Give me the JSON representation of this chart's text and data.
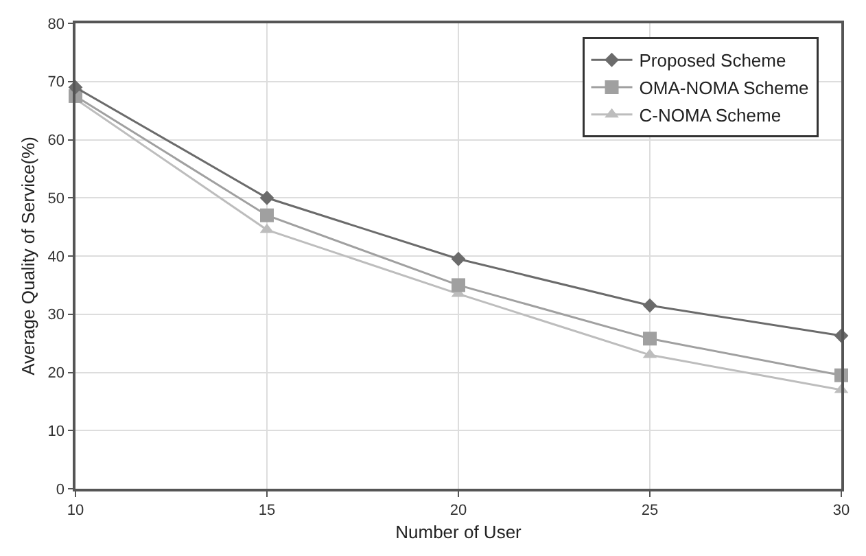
{
  "chart_data": {
    "type": "line",
    "xlabel": "Number of User",
    "ylabel": "Average Quality of Service(%)",
    "x": [
      10,
      15,
      20,
      25,
      30
    ],
    "series": [
      {
        "name": "Proposed Scheme",
        "color": "#6b6b6b",
        "marker": "diamond",
        "values": [
          69,
          50,
          39.5,
          31.5,
          26.3
        ]
      },
      {
        "name": "OMA-NOMA Scheme",
        "color": "#a0a0a0",
        "marker": "square",
        "values": [
          67.5,
          47,
          35,
          25.8,
          19.5
        ]
      },
      {
        "name": "C-NOMA Scheme",
        "color": "#bdbdbd",
        "marker": "triangle",
        "values": [
          67,
          44.5,
          33.5,
          23,
          17
        ]
      }
    ],
    "xlim": [
      10,
      30
    ],
    "xticks": [
      10,
      15,
      20,
      25,
      30
    ],
    "ylim": [
      0,
      80
    ],
    "yticks": [
      0,
      10,
      20,
      30,
      40,
      50,
      60,
      70,
      80
    ],
    "grid": true,
    "legend": "top right",
    "line_style": "solid"
  }
}
